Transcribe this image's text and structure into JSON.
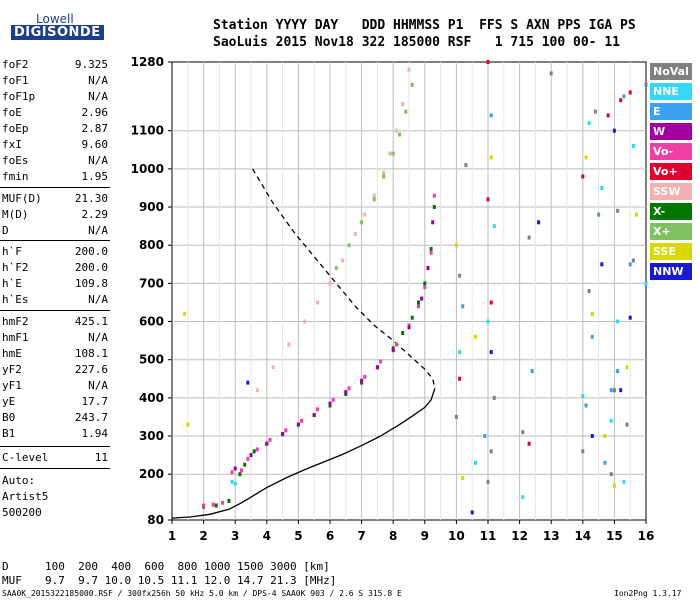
{
  "logo": {
    "line1": "Lowell",
    "line2": "DIGISONDE"
  },
  "header": {
    "row1": "Station YYYY DAY   DDD HHMMSS P1  FFS S AXN PPS IGA PS",
    "row2": "SaoLuis 2015 Nov18 322 185000 RSF   1 715 100 00- 11"
  },
  "params": [
    {
      "label": "foF2",
      "value": "9.325"
    },
    {
      "label": "foF1",
      "value": "N/A"
    },
    {
      "label": "foF1p",
      "value": "N/A"
    },
    {
      "label": "foE",
      "value": "2.96"
    },
    {
      "label": "foEp",
      "value": "2.87"
    },
    {
      "label": "fxI",
      "value": "9.60"
    },
    {
      "label": "foEs",
      "value": "N/A"
    },
    {
      "label": "fmin",
      "value": "1.95"
    },
    {
      "label": "MUF(D)",
      "value": "21.30"
    },
    {
      "label": "M(D)",
      "value": "2.29"
    },
    {
      "label": "D",
      "value": "N/A"
    },
    {
      "label": "h`F",
      "value": "200.0"
    },
    {
      "label": "h`F2",
      "value": "200.0"
    },
    {
      "label": "h`E",
      "value": "109.8"
    },
    {
      "label": "h`Es",
      "value": "N/A"
    },
    {
      "label": "hmF2",
      "value": "425.1"
    },
    {
      "label": "hmF1",
      "value": "N/A"
    },
    {
      "label": "hmE",
      "value": "108.1"
    },
    {
      "label": "yF2",
      "value": "227.6"
    },
    {
      "label": "yF1",
      "value": "N/A"
    },
    {
      "label": "yE",
      "value": "17.7"
    },
    {
      "label": "B0",
      "value": "243.7"
    },
    {
      "label": "B1",
      "value": "1.94"
    },
    {
      "label": "C-level",
      "value": "11"
    }
  ],
  "auto": {
    "line1": "Auto:",
    "line2": "Artist5",
    "line3": "500200"
  },
  "legend": [
    {
      "label": "NoVal",
      "color": "#808080"
    },
    {
      "label": "NNE",
      "color": "#33d8f4"
    },
    {
      "label": "E",
      "color": "#3ca0f0"
    },
    {
      "label": "W",
      "color": "#a000a0"
    },
    {
      "label": "Vo-",
      "color": "#f040a8"
    },
    {
      "label": "Vo+",
      "color": "#e00030"
    },
    {
      "label": "SSW",
      "color": "#f4b0b0"
    },
    {
      "label": "X-",
      "color": "#007800"
    },
    {
      "label": "X+",
      "color": "#80c060"
    },
    {
      "label": "SSE",
      "color": "#d8d800"
    },
    {
      "label": "NNW",
      "color": "#1818d0"
    }
  ],
  "muf_table": {
    "d_label": "D",
    "d_values": "100  200  400  600  800 1000 1500 3000 [km]",
    "muf_label": "MUF",
    "muf_values": "9.7  9.7 10.0 10.5 11.1 12.0 14.7 21.3 [MHz]"
  },
  "footer": {
    "left": "SAA0K_2015322185000.RSF / 300fx256h 50 kHz 5.0 km / DPS-4 SAA0K 903 / 2.6 S 315.8 E",
    "right": "Ion2Png 1.3.17"
  },
  "chart_data": {
    "type": "scatter",
    "xlim": [
      1,
      16
    ],
    "ylim": [
      80,
      1280
    ],
    "xticks": [
      1,
      2,
      3,
      4,
      5,
      6,
      7,
      8,
      9,
      10,
      11,
      12,
      13,
      14,
      15,
      16
    ],
    "yticks": [
      80,
      200,
      300,
      400,
      500,
      600,
      700,
      800,
      900,
      1000,
      1100,
      1280
    ],
    "grid": true,
    "series": [
      {
        "name": "X-",
        "color": "#007800",
        "x": [
          2.0,
          2.4,
          2.8,
          3.15,
          3.3,
          3.6,
          4.0,
          4.5,
          5.0,
          5.5,
          6.0,
          6.5,
          7.0,
          7.5,
          8.0,
          8.3,
          8.6,
          8.8,
          9.0,
          9.1,
          9.2,
          9.3
        ],
        "y": [
          115,
          118,
          130,
          200,
          225,
          260,
          280,
          305,
          330,
          355,
          380,
          410,
          440,
          480,
          530,
          570,
          610,
          650,
          700,
          740,
          790,
          900
        ]
      },
      {
        "name": "Vo-",
        "color": "#f040a8",
        "x": [
          2.0,
          2.3,
          2.6,
          2.9,
          3.2,
          3.4,
          3.7,
          4.1,
          4.6,
          5.1,
          5.6,
          6.1,
          6.6,
          7.1,
          7.6,
          8.1,
          8.5,
          8.8,
          9.0,
          9.2,
          9.3
        ],
        "y": [
          118,
          120,
          125,
          205,
          210,
          240,
          265,
          290,
          315,
          340,
          370,
          395,
          425,
          455,
          495,
          540,
          590,
          640,
          690,
          780,
          930
        ]
      },
      {
        "name": "W",
        "color": "#a000a0",
        "x": [
          3.0,
          3.5,
          4.0,
          4.5,
          5.0,
          5.5,
          6.0,
          6.5,
          7.0,
          7.5,
          8.0,
          8.5,
          8.9,
          9.1,
          9.25
        ],
        "y": [
          215,
          250,
          280,
          305,
          330,
          355,
          385,
          415,
          445,
          480,
          525,
          585,
          660,
          740,
          860
        ]
      },
      {
        "name": "SSW",
        "color": "#f4b0b0",
        "x": [
          3.7,
          4.2,
          4.7,
          5.2,
          5.6,
          6.0,
          6.4,
          6.8,
          7.1,
          7.4,
          7.7,
          7.9,
          8.1,
          8.3,
          8.5
        ],
        "y": [
          420,
          480,
          540,
          600,
          650,
          700,
          760,
          830,
          880,
          930,
          990,
          1040,
          1100,
          1170,
          1260
        ]
      },
      {
        "name": "X+",
        "color": "#80c060",
        "x": [
          6.2,
          6.6,
          7.0,
          7.4,
          7.7,
          8.0,
          8.2,
          8.4,
          8.6
        ],
        "y": [
          740,
          800,
          860,
          920,
          980,
          1040,
          1090,
          1150,
          1220
        ]
      },
      {
        "name": "NoVal",
        "color": "#808080",
        "x": [
          10.0,
          10.1,
          10.3,
          11.0,
          11.1,
          11.2,
          12.1,
          12.3,
          13.0,
          14.0,
          14.2,
          14.4,
          14.9,
          15.0,
          15.1,
          15.4,
          15.6,
          16.0
        ],
        "y": [
          350,
          720,
          1010,
          180,
          260,
          400,
          310,
          820,
          1250,
          260,
          680,
          1150,
          200,
          420,
          890,
          330,
          760,
          1220
        ]
      },
      {
        "name": "NNE",
        "color": "#33d8f4",
        "x": [
          10.1,
          10.6,
          11.0,
          11.2,
          12.1,
          14.0,
          14.2,
          14.6,
          14.9,
          15.1,
          15.3,
          15.6,
          16.0,
          2.9,
          3.0
        ],
        "y": [
          520,
          230,
          600,
          850,
          140,
          405,
          1120,
          950,
          340,
          600,
          180,
          1060,
          700,
          180,
          175
        ]
      },
      {
        "name": "E",
        "color": "#3ca0f0",
        "x": [
          10.2,
          10.9,
          11.1,
          12.4,
          14.1,
          14.3,
          14.5,
          14.7,
          14.9,
          15.1,
          15.3,
          15.5
        ],
        "y": [
          640,
          300,
          1140,
          470,
          380,
          560,
          880,
          230,
          420,
          470,
          1190,
          750
        ]
      },
      {
        "name": "Vo+",
        "color": "#e00030",
        "x": [
          10.1,
          11.0,
          11.0,
          11.1,
          12.3,
          14.0,
          14.8,
          15.2,
          15.5
        ],
        "y": [
          450,
          920,
          1280,
          650,
          280,
          980,
          1140,
          1180,
          1200
        ]
      },
      {
        "name": "SSE",
        "color": "#d8d800",
        "x": [
          10.0,
          10.2,
          10.6,
          11.1,
          14.1,
          14.3,
          14.7,
          15.0,
          15.4,
          15.7,
          1.5,
          1.4
        ],
        "y": [
          800,
          190,
          560,
          1030,
          1030,
          620,
          300,
          170,
          480,
          880,
          330,
          620
        ]
      },
      {
        "name": "NNW",
        "color": "#1818d0",
        "x": [
          10.5,
          11.1,
          12.6,
          14.3,
          14.6,
          15.0,
          15.2,
          15.5,
          3.4
        ],
        "y": [
          100,
          520,
          860,
          300,
          750,
          1100,
          420,
          610,
          440
        ]
      }
    ],
    "curves": [
      {
        "name": "profile",
        "color": "#000000",
        "style": "solid",
        "x": [
          1.0,
          1.6,
          2.2,
          2.8,
          3.2,
          3.6,
          4.0,
          4.6,
          5.2,
          5.8,
          6.4,
          7.0,
          7.6,
          8.2,
          8.6,
          9.0,
          9.2,
          9.32
        ],
        "y": [
          85,
          88,
          95,
          108,
          125,
          145,
          165,
          190,
          212,
          232,
          252,
          275,
          300,
          330,
          352,
          375,
          395,
          425
        ]
      },
      {
        "name": "topside",
        "color": "#000000",
        "style": "dashed",
        "x": [
          3.55,
          4.2,
          4.9,
          5.6,
          6.2,
          6.8,
          7.4,
          8.0,
          8.6,
          9.0,
          9.25,
          9.32
        ],
        "y": [
          1000,
          910,
          830,
          760,
          700,
          640,
          590,
          550,
          505,
          475,
          450,
          425
        ]
      }
    ]
  }
}
